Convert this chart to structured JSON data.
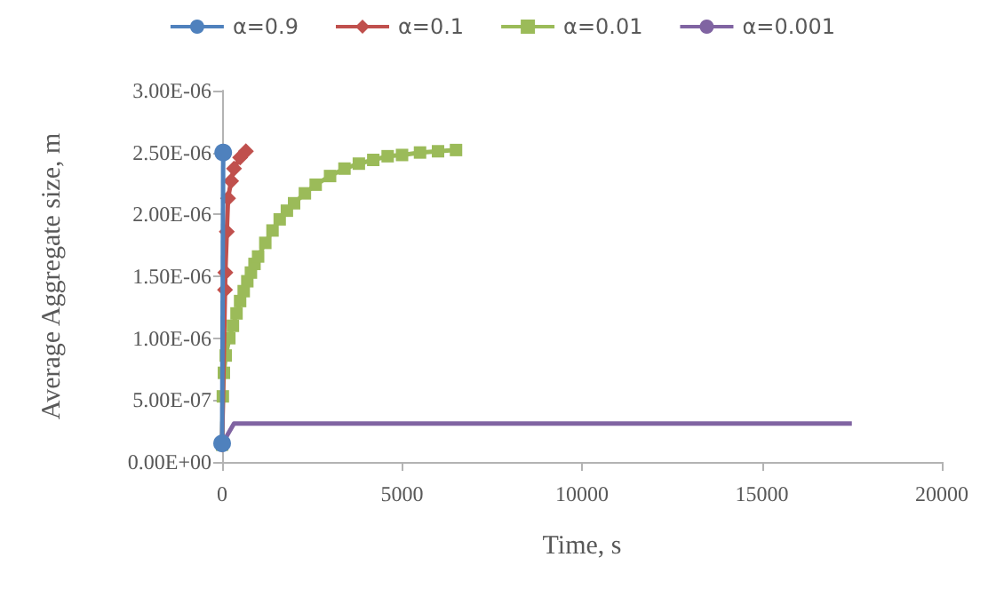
{
  "chart_data": {
    "type": "line",
    "xlabel": "Time, s",
    "ylabel": "Average Aggregate size, m",
    "xlim": [
      0,
      20000
    ],
    "xticks": [
      0,
      5000,
      10000,
      15000,
      20000
    ],
    "ylim": [
      0,
      3e-06
    ],
    "yticks": [
      {
        "value": 0,
        "label": "0.00E+00"
      },
      {
        "value": 5e-07,
        "label": "5.00E-07"
      },
      {
        "value": 1e-06,
        "label": "1.00E-06"
      },
      {
        "value": 1.5e-06,
        "label": "1.50E-06"
      },
      {
        "value": 2e-06,
        "label": "2.00E-06"
      },
      {
        "value": 2.5e-06,
        "label": "2.50E-06"
      },
      {
        "value": 3e-06,
        "label": "3.00E-06"
      }
    ],
    "grid": false,
    "legend": "top",
    "series": [
      {
        "name": "α=0.9",
        "color": "#4f81bd",
        "marker": "circle",
        "x": [
          0,
          30
        ],
        "values": [
          1.5e-07,
          2.5e-06
        ]
      },
      {
        "name": "α=0.1",
        "color": "#c0504d",
        "marker": "diamond",
        "x": [
          0,
          80,
          90,
          130,
          165,
          250,
          330,
          500,
          660
        ],
        "values": [
          1.4e-07,
          1.39e-06,
          1.53e-06,
          1.86e-06,
          2.13e-06,
          2.27e-06,
          2.37e-06,
          2.46e-06,
          2.51e-06
        ]
      },
      {
        "name": "α=0.01",
        "color": "#9bbb59",
        "marker": "square",
        "x": [
          0,
          20,
          50,
          100,
          200,
          300,
          400,
          500,
          600,
          700,
          800,
          900,
          1000,
          1200,
          1400,
          1600,
          1800,
          2000,
          2300,
          2600,
          3000,
          3400,
          3800,
          4200,
          4600,
          5000,
          5500,
          6000,
          6500
        ],
        "values": [
          1.4e-07,
          5.3e-07,
          7.2e-07,
          8.6e-07,
          1e-06,
          1.1e-06,
          1.2e-06,
          1.3e-06,
          1.38e-06,
          1.46e-06,
          1.53e-06,
          1.6e-06,
          1.66e-06,
          1.77e-06,
          1.87e-06,
          1.96e-06,
          2.03e-06,
          2.09e-06,
          2.17e-06,
          2.24e-06,
          2.31e-06,
          2.37e-06,
          2.41e-06,
          2.44e-06,
          2.47e-06,
          2.48e-06,
          2.5e-06,
          2.51e-06,
          2.52e-06
        ]
      },
      {
        "name": "α=0.001",
        "color": "#8064a2",
        "marker": "none",
        "x": [
          0,
          150,
          330,
          17500
        ],
        "values": [
          1.4e-07,
          2.2e-07,
          3.1e-07,
          3.1e-07
        ]
      }
    ]
  }
}
